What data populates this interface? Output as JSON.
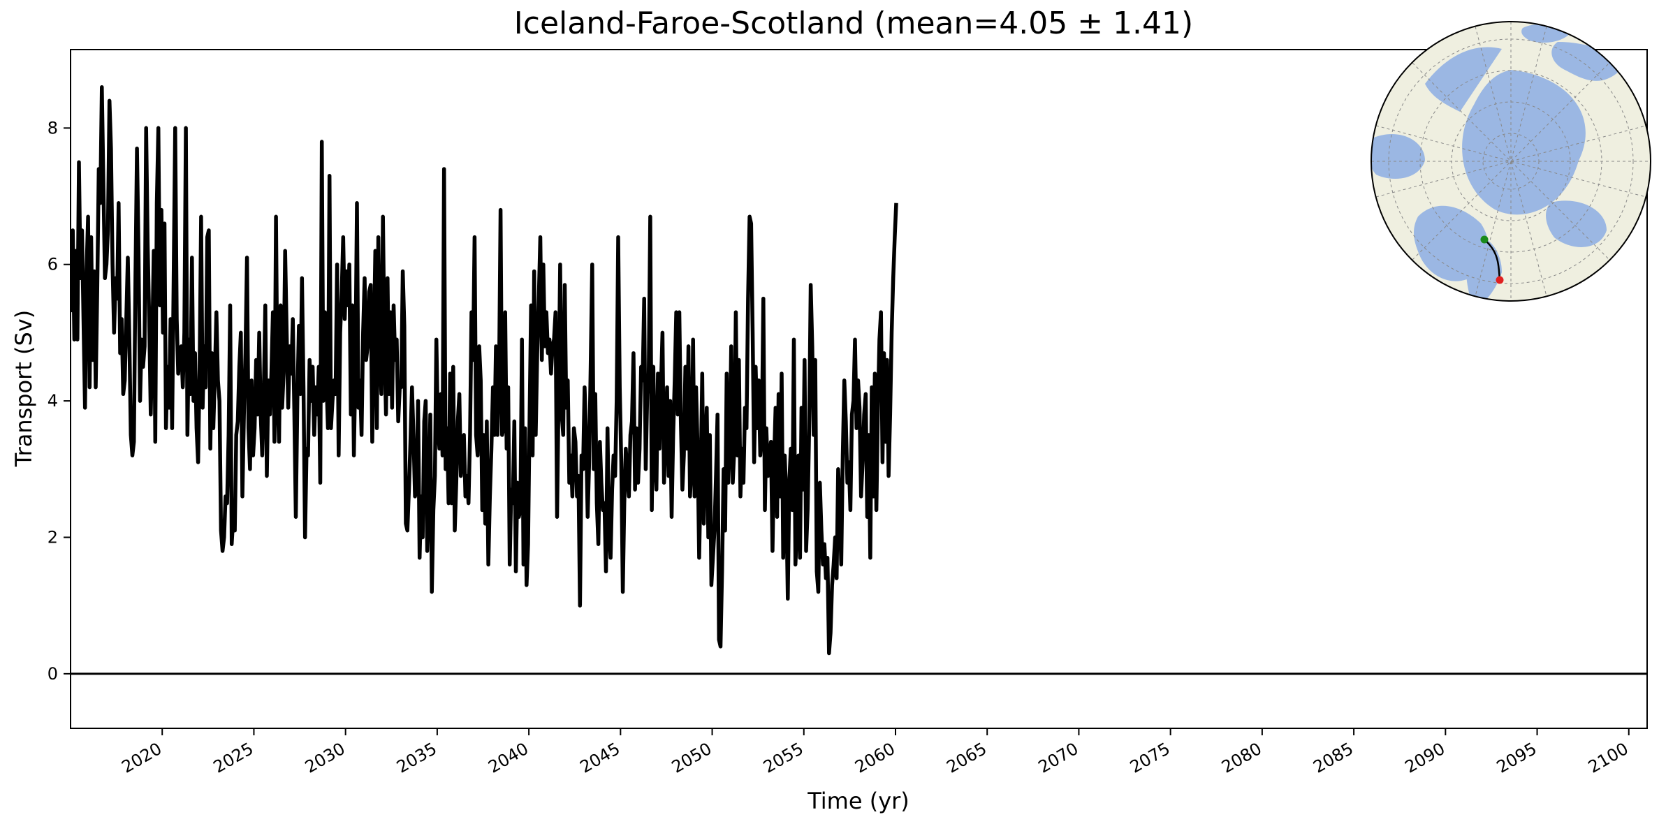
{
  "chart_data": {
    "type": "line",
    "title": "Iceland-Faroe-Scotland (mean=4.05 ± 1.41)",
    "xlabel": "Time (yr)",
    "ylabel": "Transport (Sv)",
    "xlim": [
      2015.0,
      2101.0
    ],
    "ylim": [
      -0.8,
      9.15
    ],
    "x_ticks": [
      2020,
      2025,
      2030,
      2035,
      2040,
      2045,
      2050,
      2055,
      2060,
      2065,
      2070,
      2075,
      2080,
      2085,
      2090,
      2095,
      2100
    ],
    "x_tick_labels": [
      "2020",
      "2025",
      "2030",
      "2035",
      "2040",
      "2045",
      "2050",
      "2055",
      "2060",
      "2065",
      "2070",
      "2075",
      "2080",
      "2085",
      "2090",
      "2095",
      "2100"
    ],
    "y_ticks": [
      0,
      2,
      4,
      6,
      8
    ],
    "y_tick_labels": [
      "0",
      "2",
      "4",
      "6",
      "8"
    ],
    "reference_line_y": 0,
    "series": [
      {
        "color": "#000000",
        "sampling": "monthly",
        "x_start": 2015.04,
        "x_step": 0.0833333,
        "values": [
          5.3,
          6.5,
          4.9,
          6.2,
          4.9,
          7.5,
          5.8,
          6.5,
          5.2,
          3.9,
          5.9,
          6.7,
          4.2,
          6.4,
          4.6,
          5.9,
          4.2,
          5.6,
          7.4,
          6.9,
          8.6,
          7.2,
          5.8,
          6.0,
          6.5,
          8.4,
          7.7,
          6.0,
          5.0,
          5.8,
          5.5,
          6.9,
          4.7,
          5.2,
          4.1,
          4.3,
          5.2,
          6.1,
          4.9,
          3.5,
          3.2,
          3.4,
          5.8,
          7.7,
          6.2,
          4.0,
          4.9,
          4.5,
          4.8,
          8.0,
          6.3,
          5.2,
          3.8,
          4.9,
          6.2,
          3.4,
          6.9,
          8.0,
          5.4,
          6.8,
          5.0,
          6.6,
          3.6,
          4.5,
          3.9,
          5.2,
          3.6,
          5.8,
          8.0,
          5.2,
          4.4,
          4.7,
          4.8,
          4.2,
          5.0,
          8.0,
          3.5,
          4.9,
          4.1,
          6.1,
          4.0,
          4.7,
          3.6,
          3.1,
          4.5,
          6.7,
          3.9,
          4.8,
          4.2,
          6.4,
          6.5,
          3.3,
          4.7,
          3.6,
          4.4,
          5.3,
          4.3,
          4.0,
          2.1,
          1.8,
          2.0,
          2.6,
          2.5,
          3.5,
          5.4,
          1.9,
          2.3,
          2.1,
          3.5,
          3.7,
          4.5,
          5.0,
          2.6,
          3.8,
          4.7,
          6.1,
          3.6,
          3.0,
          4.3,
          3.2,
          3.6,
          4.6,
          3.8,
          5.0,
          3.8,
          3.2,
          4.1,
          5.4,
          2.9,
          4.3,
          3.8,
          4.4,
          5.3,
          3.4,
          6.7,
          4.0,
          3.4,
          5.4,
          3.9,
          4.4,
          6.2,
          5.0,
          3.9,
          4.8,
          4.4,
          5.2,
          3.8,
          2.3,
          4.0,
          5.1,
          4.1,
          5.8,
          4.2,
          2.0,
          3.3,
          3.2,
          4.6,
          4.0,
          4.5,
          3.5,
          4.2,
          3.8,
          4.5,
          2.8,
          7.8,
          4.0,
          5.3,
          4.3,
          3.6,
          7.3,
          3.6,
          4.0,
          4.3,
          4.1,
          6.0,
          3.2,
          5.0,
          5.6,
          6.4,
          5.2,
          5.9,
          5.4,
          6.0,
          3.8,
          5.4,
          3.2,
          4.5,
          6.9,
          3.9,
          4.3,
          3.5,
          5.0,
          5.8,
          4.6,
          4.8,
          5.6,
          5.7,
          3.4,
          4.8,
          6.2,
          3.6,
          6.4,
          4.6,
          4.1,
          6.7,
          4.8,
          3.8,
          5.8,
          4.1,
          5.3,
          3.9,
          5.4,
          4.6,
          4.9,
          3.7,
          4.2,
          4.2,
          5.9,
          5.1,
          2.2,
          2.1,
          2.7,
          3.4,
          4.2,
          3.5,
          2.6,
          2.7,
          4.0,
          1.7,
          2.6,
          2.0,
          3.7,
          4.0,
          1.8,
          2.5,
          3.8,
          1.2,
          2.4,
          2.9,
          4.9,
          3.6,
          3.3,
          4.1,
          3.2,
          7.4,
          3.0,
          3.6,
          2.5,
          4.4,
          2.5,
          4.5,
          2.1,
          2.8,
          3.7,
          4.1,
          2.9,
          3.2,
          3.5,
          2.6,
          2.9,
          2.5,
          3.5,
          5.3,
          4.6,
          6.4,
          3.5,
          3.2,
          4.8,
          4.3,
          2.4,
          3.5,
          2.2,
          3.7,
          1.6,
          2.6,
          3.3,
          4.2,
          3.5,
          4.8,
          3.5,
          4.3,
          6.8,
          3.5,
          3.6,
          5.3,
          3.3,
          4.2,
          1.6,
          2.7,
          2.5,
          3.7,
          1.5,
          2.8,
          2.3,
          2.4,
          4.9,
          1.6,
          3.6,
          1.3,
          1.9,
          3.8,
          5.4,
          3.2,
          5.9,
          3.5,
          4.7,
          5.5,
          6.4,
          4.6,
          6.0,
          4.8,
          5.3,
          4.7,
          4.9,
          4.4,
          4.8,
          4.9,
          5.3,
          2.3,
          4.1,
          6.0,
          3.8,
          3.5,
          5.7,
          3.9,
          4.3,
          2.8,
          3.2,
          2.6,
          3.6,
          3.4,
          2.6,
          2.9,
          1.0,
          3.2,
          3.0,
          4.2,
          3.5,
          2.3,
          3.1,
          4.5,
          6.0,
          3.0,
          4.1,
          2.5,
          1.9,
          3.4,
          2.8,
          2.4,
          2.5,
          1.5,
          3.6,
          2.0,
          1.7,
          2.7,
          3.2,
          2.9,
          4.0,
          6.4,
          4.2,
          3.1,
          1.2,
          2.5,
          3.3,
          2.9,
          2.6,
          3.5,
          3.7,
          4.7,
          2.7,
          3.6,
          2.8,
          3.3,
          4.5,
          4.3,
          5.5,
          3.0,
          4.1,
          4.4,
          6.7,
          2.4,
          4.5,
          3.1,
          2.7,
          4.4,
          3.3,
          4.2,
          5.0,
          2.8,
          3.5,
          4.2,
          2.9,
          4.0,
          2.3,
          3.5,
          4.3,
          5.3,
          3.8,
          5.3,
          3.7,
          2.7,
          3.2,
          4.5,
          3.3,
          4.8,
          2.6,
          3.0,
          4.9,
          2.6,
          4.2,
          3.3,
          1.7,
          2.9,
          4.4,
          2.2,
          3.3,
          3.9,
          2.0,
          3.5,
          1.3,
          1.7,
          2.1,
          2.9,
          3.8,
          0.5,
          0.4,
          1.5,
          3.0,
          2.1,
          4.4,
          2.8,
          3.4,
          4.8,
          2.8,
          3.3,
          5.3,
          3.2,
          4.6,
          2.6,
          3.3,
          2.8,
          3.9,
          3.6,
          5.5,
          6.7,
          6.6,
          5.0,
          3.1,
          4.5,
          3.6,
          4.3,
          3.2,
          3.5,
          5.5,
          2.4,
          3.6,
          2.9,
          3.2,
          3.4,
          1.8,
          3.1,
          3.9,
          2.3,
          4.1,
          2.6,
          4.4,
          1.7,
          3.2,
          2.6,
          1.1,
          2.8,
          3.3,
          2.4,
          4.9,
          1.6,
          2.1,
          3.2,
          1.7,
          3.9,
          2.7,
          4.6,
          1.8,
          2.4,
          3.6,
          5.7,
          4.8,
          3.5,
          4.6,
          1.5,
          1.2,
          2.8,
          2.1,
          1.6,
          1.9,
          1.4,
          1.7,
          0.3,
          0.6,
          1.3,
          1.6,
          2.0,
          1.4,
          3.0,
          2.5,
          1.6,
          3.2,
          4.3,
          3.7,
          2.8,
          3.1,
          2.4,
          3.8,
          4.0,
          4.9,
          3.6,
          4.3,
          3.9,
          2.6,
          3.1,
          3.8,
          4.1,
          2.3,
          3.5,
          1.7,
          4.2,
          2.6,
          4.4,
          2.4,
          3.9,
          4.9,
          5.3,
          3.1,
          4.7,
          3.4,
          4.6,
          2.9,
          3.8,
          5.0,
          5.8,
          6.4,
          6.9
        ]
      }
    ],
    "inset": {
      "type": "polar-map",
      "colors": {
        "ocean": "#9bb7e3",
        "land": "#efefe0",
        "start_marker": "#1a8a1a",
        "end_marker": "#e02020",
        "section_line": "#000000"
      }
    }
  }
}
